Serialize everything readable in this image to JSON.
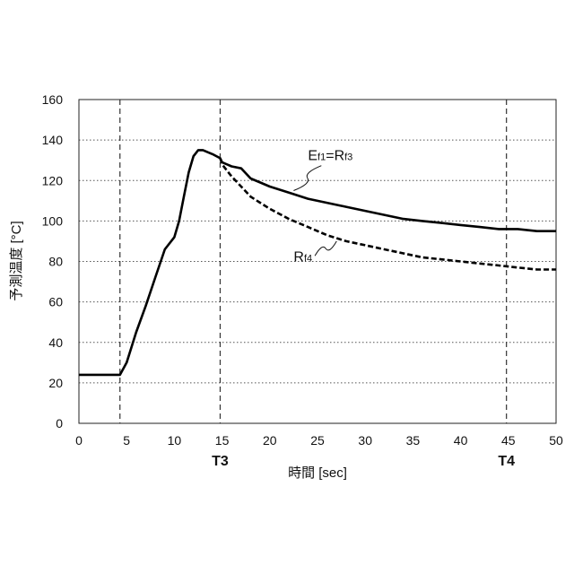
{
  "chart_data": {
    "type": "line",
    "xlabel": "時間 [sec]",
    "ylabel": "予測温度 [°C]",
    "xlim": [
      0,
      50
    ],
    "ylim": [
      0,
      160
    ],
    "x_ticks": [
      "0",
      "5",
      "10",
      "15",
      "20",
      "25",
      "30",
      "35",
      "40",
      "45",
      "50"
    ],
    "y_ticks": [
      "0",
      "20",
      "40",
      "60",
      "80",
      "100",
      "120",
      "140",
      "160"
    ],
    "grid": "horizontal dotted",
    "markers": [
      {
        "x": 4.3,
        "label": ""
      },
      {
        "x": 14.8,
        "label": "T3"
      },
      {
        "x": 44.8,
        "label": "T4"
      }
    ],
    "series": [
      {
        "name": "Ef1=Rf3",
        "style": "solid",
        "color": "#000000",
        "x": [
          0,
          4.3,
          5,
          6,
          7,
          8,
          9,
          10,
          10.5,
          11,
          11.5,
          12,
          12.5,
          13,
          13.5,
          14,
          14.8,
          15,
          16,
          17,
          18,
          19,
          20,
          22,
          24,
          26,
          28,
          30,
          32,
          34,
          36,
          38,
          40,
          42,
          44,
          46,
          48,
          50
        ],
        "y": [
          24,
          24,
          30,
          45,
          58,
          72,
          86,
          92,
          100,
          112,
          124,
          132,
          135,
          135,
          134,
          133,
          131,
          129,
          127,
          126,
          121,
          119,
          117,
          114,
          111,
          109,
          107,
          105,
          103,
          101,
          100,
          99,
          98,
          97,
          96,
          96,
          95,
          95
        ]
      },
      {
        "name": "Rf4",
        "style": "dashed",
        "color": "#000000",
        "x": [
          14.8,
          15,
          16,
          17,
          18,
          19,
          20,
          22,
          24,
          26,
          28,
          30,
          32,
          34,
          36,
          38,
          40,
          42,
          44,
          46,
          48,
          50
        ],
        "y": [
          131,
          128,
          122,
          117,
          112,
          109,
          106,
          101,
          97,
          93,
          90,
          88,
          86,
          84,
          82,
          81,
          80,
          79,
          78,
          77,
          76,
          76
        ]
      }
    ],
    "annotations": [
      {
        "series": "Ef1=Rf3",
        "parts": [
          {
            "t": "E",
            "sub": false
          },
          {
            "t": "f1",
            "sub": true
          },
          {
            "t": "=R",
            "sub": false
          },
          {
            "t": "f3",
            "sub": true
          }
        ],
        "x": 24,
        "y": 130,
        "pointer_x": 22.5,
        "pointer_y": 115
      },
      {
        "series": "Rf4",
        "parts": [
          {
            "t": "R",
            "sub": false
          },
          {
            "t": "f4",
            "sub": true
          }
        ],
        "x": 22.5,
        "y": 80,
        "pointer_x": 27,
        "pointer_y": 90
      }
    ]
  }
}
